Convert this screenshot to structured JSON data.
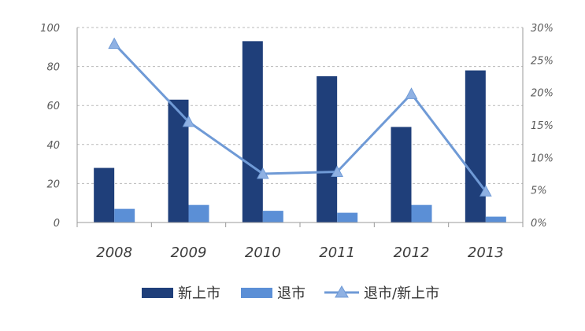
{
  "chart_data": {
    "type": "bar",
    "categories": [
      "2008",
      "2009",
      "2010",
      "2011",
      "2012",
      "2013"
    ],
    "series": [
      {
        "name": "新上市",
        "type": "bar",
        "axis": "left",
        "values": [
          28,
          63,
          93,
          75,
          49,
          78
        ],
        "color": "#1f3f7a"
      },
      {
        "name": "退市",
        "type": "bar",
        "axis": "left",
        "values": [
          7,
          9,
          6,
          5,
          9,
          3
        ],
        "color": "#5b8fd6"
      },
      {
        "name": "退市/新上市",
        "type": "line",
        "axis": "right",
        "marker": "triangle",
        "values": [
          0.275,
          0.155,
          0.075,
          0.078,
          0.198,
          0.048
        ],
        "color": "#6f9ad6"
      }
    ],
    "y_left": {
      "range": [
        0,
        100
      ],
      "ticks": [
        "0",
        "20",
        "40",
        "60",
        "80",
        "100"
      ]
    },
    "y_right": {
      "range": [
        0,
        0.3
      ],
      "ticks": [
        "0%",
        "5%",
        "10%",
        "15%",
        "20%",
        "25%",
        "30%"
      ]
    },
    "grid": true,
    "legend_position": "bottom"
  }
}
